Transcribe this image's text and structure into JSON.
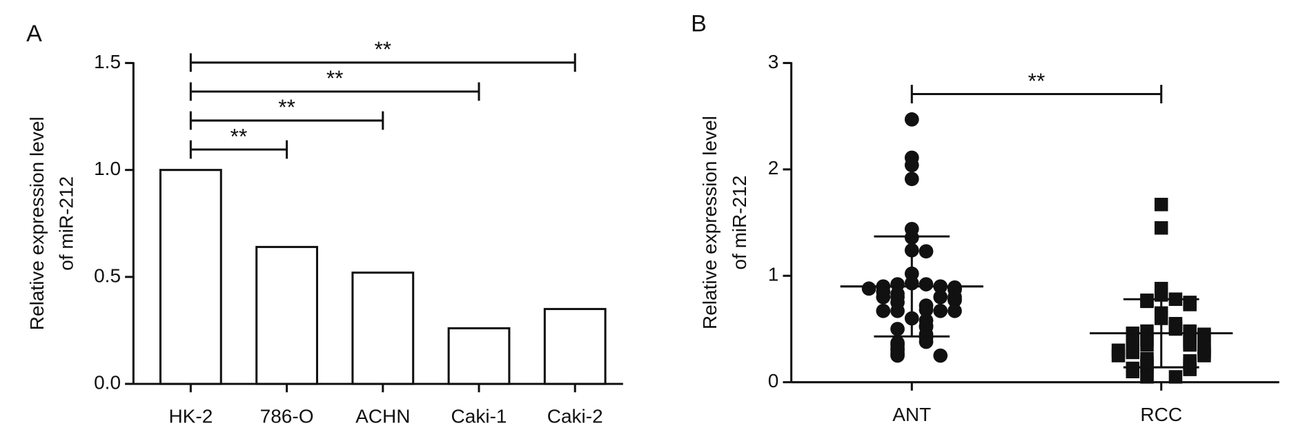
{
  "chart_data": [
    {
      "type": "bar",
      "panel_label": "A",
      "ylabel": [
        "Relative expression level",
        "of miR-212"
      ],
      "categories": [
        "HK-2",
        "786-O",
        "ACHN",
        "Caki-1",
        "Caki-2"
      ],
      "values": [
        1.0,
        0.64,
        0.52,
        0.26,
        0.35
      ],
      "color": "#ffffff",
      "edgecolor": "#111111",
      "ylim": [
        0,
        1.5
      ],
      "yticks": [
        {
          "value": 0,
          "label": "0.0"
        },
        0.5,
        {
          "value": 1,
          "label": "1.0"
        },
        1.5
      ],
      "annotations": [
        {
          "text": "**",
          "between": [
            "HK-2",
            "786-O"
          ]
        },
        {
          "text": "**",
          "between": [
            "HK-2",
            "ACHN"
          ]
        },
        {
          "text": "**",
          "between": [
            "HK-2",
            "Caki-1"
          ]
        },
        {
          "text": "**",
          "between": [
            "HK-2",
            "Caki-2"
          ]
        }
      ]
    },
    {
      "type": "dot",
      "panel_label": "B",
      "ylabel": [
        "Relative expression level",
        "of miR-212"
      ],
      "categories": [
        "ANT",
        "RCC"
      ],
      "color": "#111111",
      "groups": [
        {
          "marker": "circle",
          "mean": 0.9,
          "sd": 0.47,
          "values": [
            2.47,
            2.11,
            2.04,
            1.91,
            1.44,
            1.36,
            1.24,
            1.23,
            1.02,
            0.93,
            0.92,
            0.92,
            0.9,
            0.9,
            0.89,
            0.88,
            0.88,
            0.87,
            0.85,
            0.83,
            0.8,
            0.8,
            0.8,
            0.8,
            0.78,
            0.77,
            0.75,
            0.72,
            0.68,
            0.67,
            0.67,
            0.67,
            0.67,
            0.6,
            0.58,
            0.53,
            0.52,
            0.5,
            0.45,
            0.42,
            0.38,
            0.37,
            0.35,
            0.32,
            0.3,
            0.27,
            0.25,
            0.25
          ]
        },
        {
          "marker": "square",
          "mean": 0.46,
          "sd": 0.32,
          "values": [
            1.67,
            1.45,
            0.88,
            0.82,
            0.78,
            0.77,
            0.76,
            0.75,
            0.73,
            0.65,
            0.6,
            0.55,
            0.52,
            0.5,
            0.48,
            0.48,
            0.47,
            0.46,
            0.45,
            0.43,
            0.4,
            0.4,
            0.38,
            0.36,
            0.35,
            0.35,
            0.35,
            0.33,
            0.3,
            0.3,
            0.3,
            0.28,
            0.28,
            0.25,
            0.25,
            0.22,
            0.2,
            0.18,
            0.17,
            0.15,
            0.15,
            0.13,
            0.12,
            0.1,
            0.08,
            0.05,
            0.05
          ]
        }
      ],
      "ylim": [
        0,
        3
      ],
      "yticks": [
        0,
        1,
        2,
        3
      ],
      "annotations": [
        {
          "text": "**",
          "between": [
            "ANT",
            "RCC"
          ]
        }
      ]
    }
  ]
}
